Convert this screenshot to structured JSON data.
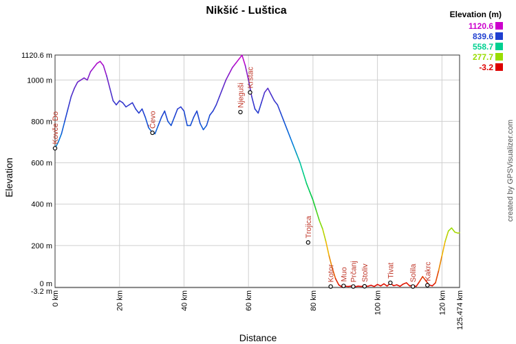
{
  "chart_data": {
    "type": "line",
    "title": "Nikšić - Luštica",
    "xlabel": "Distance",
    "ylabel": "Elevation",
    "xlim": [
      0,
      125.474
    ],
    "ylim": [
      -3.2,
      1120.6
    ],
    "x_ticks": [
      {
        "value": 0,
        "label": "0 km"
      },
      {
        "value": 20,
        "label": "20 km"
      },
      {
        "value": 40,
        "label": "40 km"
      },
      {
        "value": 60,
        "label": "60 km"
      },
      {
        "value": 80,
        "label": "80 km"
      },
      {
        "value": 100,
        "label": "100 km"
      },
      {
        "value": 120,
        "label": "120 km"
      },
      {
        "value": 125.474,
        "label": "125.474 km"
      }
    ],
    "y_ticks": [
      {
        "value": -3.2,
        "label": "-3.2 m"
      },
      {
        "value": 0,
        "label": "0 m"
      },
      {
        "value": 200,
        "label": "200 m"
      },
      {
        "value": 400,
        "label": "400 m"
      },
      {
        "value": 600,
        "label": "600 m"
      },
      {
        "value": 800,
        "label": "800 m"
      },
      {
        "value": 1000,
        "label": "1000 m"
      },
      {
        "value": 1120.6,
        "label": "1120.6 m"
      }
    ],
    "grid": true,
    "legend": {
      "title": "Elevation (m)",
      "position": "top-right",
      "entries": [
        {
          "label": "1120.6",
          "color": "#cc00cc"
        },
        {
          "label": "839.6",
          "color": "#1f3fd0"
        },
        {
          "label": "558.7",
          "color": "#00d090"
        },
        {
          "label": "277.7",
          "color": "#99dd00"
        },
        {
          "label": "-3.2",
          "color": "#dd0000"
        }
      ]
    },
    "series": [
      {
        "x": [
          0,
          1,
          2,
          3,
          4,
          5,
          6,
          7,
          8,
          9,
          10,
          11,
          12,
          13,
          14,
          15,
          16,
          17,
          18,
          19,
          20,
          21,
          22,
          23,
          24,
          25,
          26,
          27,
          28,
          29,
          30,
          31,
          32,
          33,
          34,
          35,
          36,
          37,
          38,
          39,
          40,
          41,
          42,
          43,
          44,
          45,
          46,
          47,
          48,
          49,
          50,
          51,
          52,
          53,
          54,
          55,
          56,
          57,
          58,
          59,
          60,
          61,
          62,
          63,
          64,
          65,
          66,
          67,
          68,
          69,
          70,
          71,
          72,
          73,
          74,
          75,
          76,
          77,
          78,
          79,
          80,
          81,
          82,
          83,
          84,
          85,
          86,
          87,
          88,
          89,
          90,
          91,
          92,
          93,
          94,
          95,
          96,
          97,
          98,
          99,
          100,
          101,
          102,
          103,
          104,
          105,
          106,
          107,
          108,
          109,
          110,
          111,
          112,
          113,
          114,
          115,
          116,
          117,
          118,
          119,
          120,
          121,
          122,
          123,
          124,
          125,
          125.474
        ],
        "y": [
          670,
          700,
          740,
          800,
          860,
          920,
          960,
          990,
          1000,
          1010,
          1000,
          1040,
          1060,
          1080,
          1090,
          1070,
          1020,
          960,
          900,
          880,
          900,
          890,
          870,
          880,
          890,
          860,
          840,
          860,
          820,
          770,
          750,
          740,
          780,
          820,
          850,
          800,
          780,
          820,
          860,
          870,
          850,
          780,
          780,
          820,
          850,
          790,
          760,
          780,
          830,
          850,
          880,
          920,
          960,
          1000,
          1030,
          1060,
          1080,
          1100,
          1120,
          1070,
          1000,
          920,
          860,
          840,
          890,
          940,
          960,
          930,
          900,
          880,
          840,
          800,
          760,
          720,
          680,
          640,
          600,
          550,
          500,
          460,
          420,
          370,
          320,
          280,
          220,
          150,
          90,
          40,
          10,
          0,
          3,
          2,
          5,
          0,
          4,
          2,
          6,
          3,
          8,
          2,
          12,
          5,
          15,
          4,
          18,
          6,
          10,
          3,
          14,
          20,
          5,
          8,
          2,
          25,
          50,
          30,
          10,
          5,
          20,
          80,
          150,
          220,
          270,
          285,
          265,
          260,
          262
        ],
        "color_scale": true
      }
    ],
    "waypoints": [
      {
        "x": 0,
        "y": 670,
        "label": "Kovče Do"
      },
      {
        "x": 30.2,
        "y": 745,
        "label": "Čevo"
      },
      {
        "x": 57.5,
        "y": 845,
        "label": "Njeguši"
      },
      {
        "x": 60.5,
        "y": 940,
        "label": "Krstac"
      },
      {
        "x": 78.5,
        "y": 215,
        "label": "Trojica"
      },
      {
        "x": 85.5,
        "y": 2,
        "label": "Kotor"
      },
      {
        "x": 89.5,
        "y": 5,
        "label": "Muo"
      },
      {
        "x": 92.5,
        "y": 2,
        "label": "Prčanj"
      },
      {
        "x": 96,
        "y": 3,
        "label": "Stoliv"
      },
      {
        "x": 104,
        "y": 20,
        "label": "Tivat"
      },
      {
        "x": 111,
        "y": 2,
        "label": "Solila"
      },
      {
        "x": 115.5,
        "y": 8,
        "label": "Kakrc"
      }
    ],
    "side_label": "created by GPSVisualizer.com"
  }
}
